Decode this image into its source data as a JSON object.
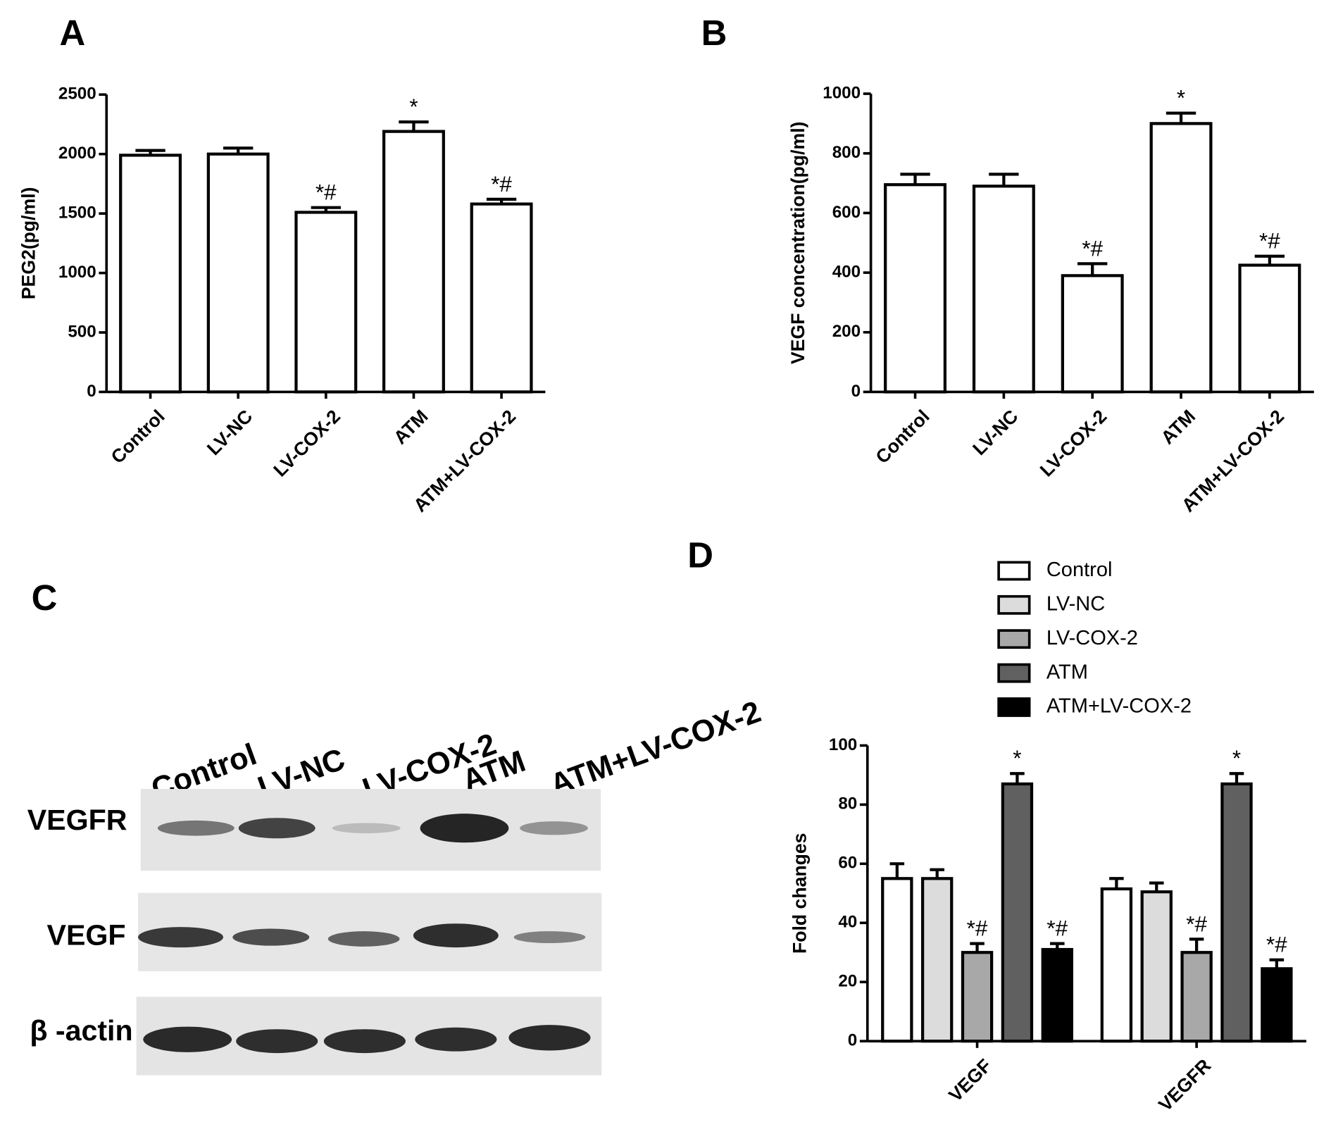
{
  "chart_data": [
    {
      "type": "bar",
      "panel": "A",
      "ylabel": "PEG2(pg/ml)",
      "categories": [
        "Control",
        "LV-NC",
        "LV-COX-2",
        "ATM",
        "ATM+LV-COX-2"
      ],
      "values": [
        1990,
        2000,
        1510,
        2190,
        1580
      ],
      "errors": [
        40,
        50,
        40,
        80,
        40
      ],
      "annotations": [
        null,
        null,
        "*#",
        "*",
        "*#"
      ],
      "color": "#ffffff",
      "ylim": [
        0,
        2500
      ],
      "yticks": [
        0,
        500,
        1000,
        1500,
        2000,
        2500
      ]
    },
    {
      "type": "bar",
      "panel": "B",
      "ylabel": "VEGF concentration(pg/ml)",
      "categories": [
        "Control",
        "LV-NC",
        "LV-COX-2",
        "ATM",
        "ATM+LV-COX-2"
      ],
      "values": [
        695,
        690,
        390,
        900,
        425
      ],
      "errors": [
        35,
        40,
        40,
        35,
        30
      ],
      "annotations": [
        null,
        null,
        "*#",
        "*",
        "*#"
      ],
      "color": "#ffffff",
      "ylim": [
        0,
        1000
      ],
      "yticks": [
        0,
        200,
        400,
        600,
        800,
        1000
      ]
    },
    {
      "type": "grouped-bar",
      "panel": "D",
      "ylabel": "Fold changes",
      "categories": [
        "VEGF",
        "VEGFR"
      ],
      "series": [
        {
          "name": "Control",
          "color": "#ffffff",
          "values": [
            55,
            51.5
          ],
          "errors": [
            5,
            3.5
          ],
          "annotations": [
            null,
            null
          ]
        },
        {
          "name": "LV-NC",
          "color": "#dcdcdc",
          "values": [
            55,
            50.5
          ],
          "errors": [
            3,
            3
          ],
          "annotations": [
            null,
            null
          ]
        },
        {
          "name": "LV-COX-2",
          "color": "#a8a8a8",
          "values": [
            30,
            30
          ],
          "errors": [
            3,
            4.5
          ],
          "annotations": [
            "*#",
            "*#"
          ]
        },
        {
          "name": "ATM",
          "color": "#606060",
          "values": [
            87,
            87
          ],
          "errors": [
            3.5,
            3.5
          ],
          "annotations": [
            "*",
            "*"
          ]
        },
        {
          "name": "ATM+LV-COX-2",
          "color": "#000000",
          "values": [
            31,
            24.5
          ],
          "errors": [
            2,
            3
          ],
          "annotations": [
            "*#",
            "*#"
          ]
        }
      ],
      "ylim": [
        0,
        100
      ],
      "yticks": [
        0,
        20,
        40,
        60,
        80,
        100
      ]
    }
  ],
  "blot": {
    "panel": "C",
    "lanes": [
      "Control",
      "LV-NC",
      "LV-COX-2",
      "ATM",
      "ATM+LV-COX-2"
    ],
    "rows": [
      "VEGFR",
      "VEGF",
      "β -actin"
    ]
  }
}
